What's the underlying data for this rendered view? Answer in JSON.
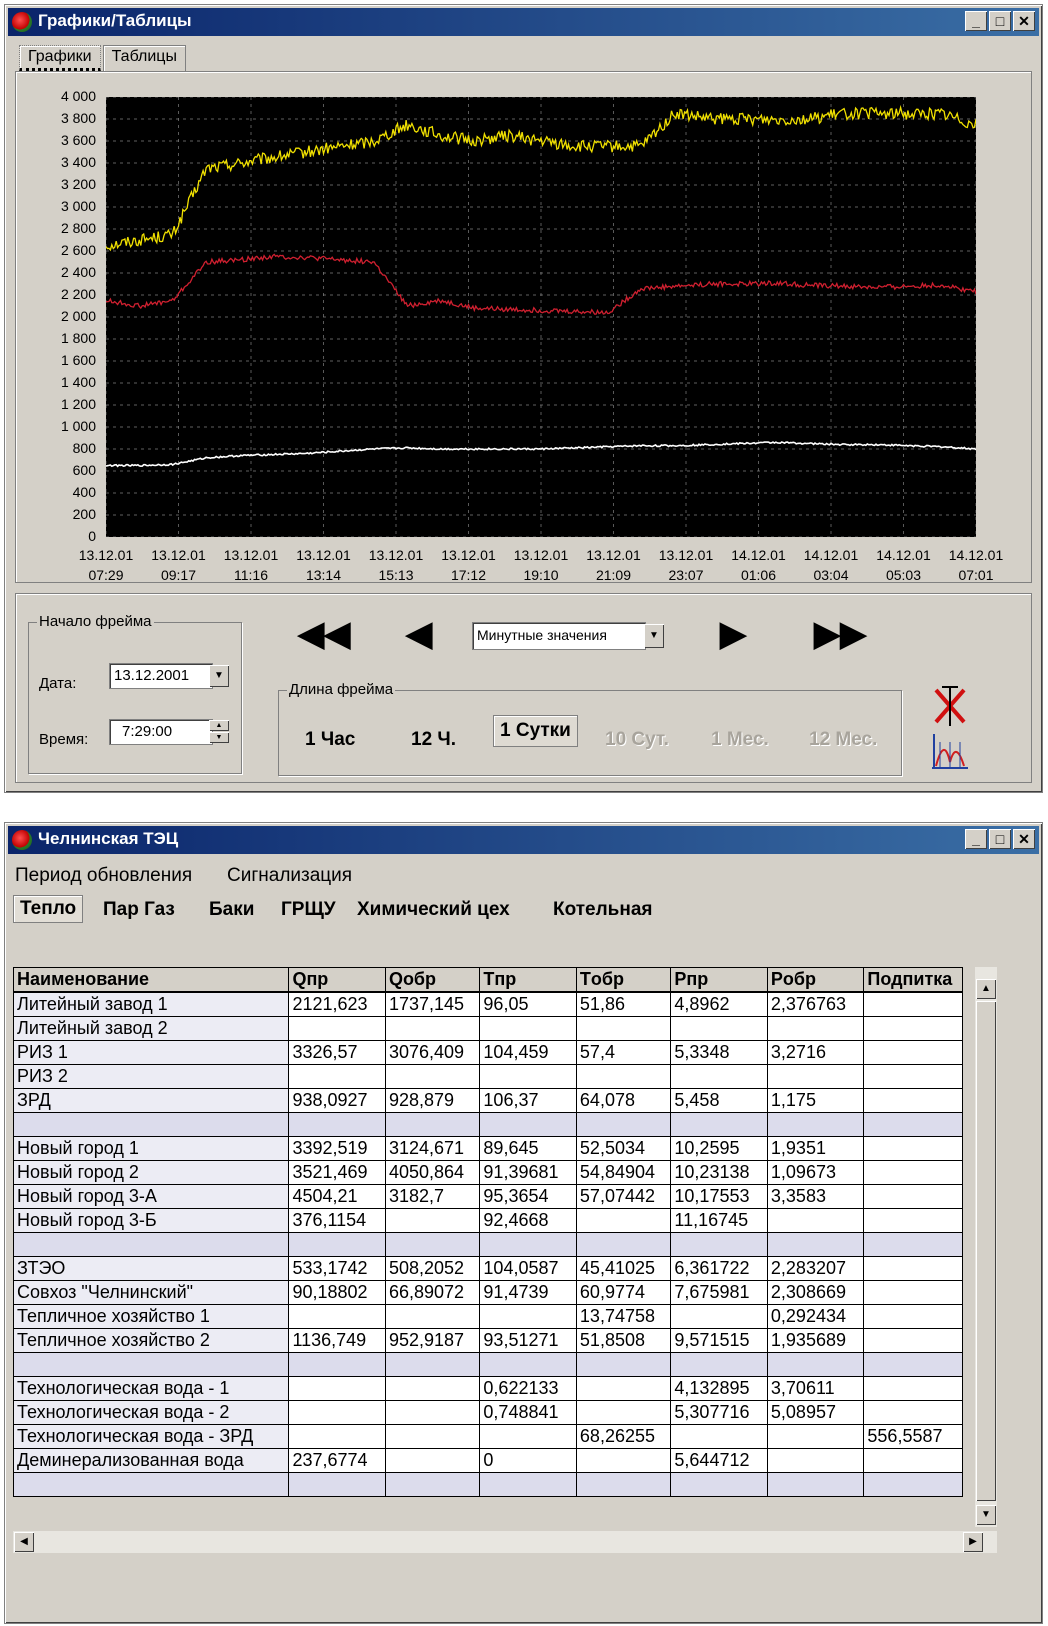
{
  "charts_window": {
    "title": "Графики/Таблицы",
    "tabs": [
      "Графики",
      "Таблицы"
    ],
    "chart_data": {
      "type": "line",
      "ylim": [
        0,
        4000
      ],
      "y_ticks": [
        "4 000",
        "3 800",
        "3 600",
        "3 400",
        "3 200",
        "3 000",
        "2 800",
        "2 600",
        "2 400",
        "2 200",
        "2 000",
        "1 800",
        "1 600",
        "1 400",
        "1 200",
        "1 000",
        "800",
        "600",
        "400",
        "200",
        "0"
      ],
      "x_ticks": [
        {
          "date": "13.12.01",
          "time": "07:29"
        },
        {
          "date": "13.12.01",
          "time": "09:17"
        },
        {
          "date": "13.12.01",
          "time": "11:16"
        },
        {
          "date": "13.12.01",
          "time": "13:14"
        },
        {
          "date": "13.12.01",
          "time": "15:13"
        },
        {
          "date": "13.12.01",
          "time": "17:12"
        },
        {
          "date": "13.12.01",
          "time": "19:10"
        },
        {
          "date": "13.12.01",
          "time": "21:09"
        },
        {
          "date": "13.12.01",
          "time": "23:07"
        },
        {
          "date": "14.12.01",
          "time": "01:06"
        },
        {
          "date": "14.12.01",
          "time": "03:04"
        },
        {
          "date": "14.12.01",
          "time": "05:03"
        },
        {
          "date": "14.12.01",
          "time": "07:01"
        }
      ],
      "grid": true,
      "background": "#000000",
      "series": [
        {
          "color": "#f0e000",
          "values": [
            2650,
            2700,
            2750,
            3350,
            3400,
            3450,
            3500,
            3550,
            3600,
            3750,
            3650,
            3600,
            3650,
            3600,
            3550,
            3550,
            3550,
            3850,
            3800,
            3800,
            3800,
            3800,
            3850,
            3850,
            3850,
            3850,
            3750
          ]
        },
        {
          "color": "#d02030",
          "values": [
            2150,
            2100,
            2150,
            2500,
            2520,
            2550,
            2540,
            2520,
            2500,
            2100,
            2150,
            2080,
            2070,
            2060,
            2050,
            2040,
            2260,
            2280,
            2300,
            2300,
            2310,
            2290,
            2280,
            2270,
            2280,
            2290,
            2230
          ]
        },
        {
          "color": "#ffffff",
          "values": [
            650,
            650,
            660,
            720,
            740,
            750,
            760,
            780,
            800,
            810,
            800,
            800,
            800,
            800,
            810,
            820,
            830,
            830,
            840,
            850,
            860,
            850,
            840,
            840,
            830,
            820,
            800
          ]
        }
      ]
    },
    "frame_start": {
      "group_label": "Начало фрейма",
      "date_label": "Дата:",
      "date_value": "13.12.2001",
      "time_label": "Время:",
      "time_value": "7:29:00"
    },
    "mode_select": "Минутные значения",
    "frame_length": {
      "group_label": "Длина фрейма",
      "options": [
        {
          "label": "1 Час",
          "state": "enabled"
        },
        {
          "label": "12 Ч.",
          "state": "enabled"
        },
        {
          "label": "1 Сутки",
          "state": "selected"
        },
        {
          "label": "10 Сут.",
          "state": "disabled"
        },
        {
          "label": "1 Мес.",
          "state": "disabled"
        },
        {
          "label": "12 Мес.",
          "state": "disabled"
        }
      ]
    }
  },
  "table_window": {
    "title": "Челнинская ТЭЦ",
    "menu": [
      "Период обновления",
      "Сигнализация"
    ],
    "sheet_tabs": [
      "Тепло",
      "Пар Газ",
      "Баки",
      "ГРЩУ",
      "Химический цех",
      "Котельная"
    ],
    "columns": [
      "Наименование",
      "Qпр",
      "Qобр",
      "Tпр",
      "Tобр",
      "Pпр",
      "Pобр",
      "Подпитка"
    ],
    "rows": [
      [
        "Литейный завод 1",
        "2121,623",
        "1737,145",
        "96,05",
        "51,86",
        "4,8962",
        "2,376763",
        ""
      ],
      [
        "Литейный завод 2",
        "",
        "",
        "",
        "",
        "",
        "",
        ""
      ],
      [
        "РИЗ 1",
        "3326,57",
        "3076,409",
        "104,459",
        "57,4",
        "5,3348",
        "3,2716",
        ""
      ],
      [
        "РИЗ 2",
        "",
        "",
        "",
        "",
        "",
        "",
        ""
      ],
      [
        "ЗРД",
        "938,0927",
        "928,879",
        "106,37",
        "64,078",
        "5,458",
        "1,175",
        ""
      ],
      [
        "",
        "",
        "",
        "",
        "",
        "",
        "",
        ""
      ],
      [
        "Новый город 1",
        "3392,519",
        "3124,671",
        "89,645",
        "52,5034",
        "10,2595",
        "1,9351",
        ""
      ],
      [
        "Новый город 2",
        "3521,469",
        "4050,864",
        "91,39681",
        "54,84904",
        "10,23138",
        "1,09673",
        ""
      ],
      [
        "Новый город 3-А",
        "4504,21",
        "3182,7",
        "95,3654",
        "57,07442",
        "10,17553",
        "3,3583",
        ""
      ],
      [
        "Новый город 3-Б",
        "376,1154",
        "",
        "92,4668",
        "",
        "11,16745",
        "",
        ""
      ],
      [
        "",
        "",
        "",
        "",
        "",
        "",
        "",
        ""
      ],
      [
        "ЗТЭО",
        "533,1742",
        "508,2052",
        "104,0587",
        "45,41025",
        "6,361722",
        "2,283207",
        ""
      ],
      [
        "Совхоз \"Челнинский\"",
        "90,18802",
        "66,89072",
        "91,4739",
        "60,9774",
        "7,675981",
        "2,308669",
        ""
      ],
      [
        "Тепличное хозяйство 1",
        "",
        "",
        "",
        "13,74758",
        "",
        "0,292434",
        ""
      ],
      [
        "Тепличное хозяйство 2",
        "1136,749",
        "952,9187",
        "93,51271",
        "51,8508",
        "9,571515",
        "1,935689",
        ""
      ],
      [
        "",
        "",
        "",
        "",
        "",
        "",
        "",
        ""
      ],
      [
        "Технологическая вода - 1",
        "",
        "",
        "0,622133",
        "",
        "4,132895",
        "3,70611",
        ""
      ],
      [
        "Технологическая вода - 2",
        "",
        "",
        "0,748841",
        "",
        "5,307716",
        "5,08957",
        ""
      ],
      [
        "Технологическая вода - ЗРД",
        "",
        "",
        "",
        "68,26255",
        "",
        "",
        "556,5587"
      ],
      [
        "Деминерализованная вода",
        "237,6774",
        "",
        "0",
        "",
        "5,644712",
        "",
        ""
      ],
      [
        "",
        "",
        "",
        "",
        "",
        "",
        "",
        ""
      ]
    ]
  }
}
